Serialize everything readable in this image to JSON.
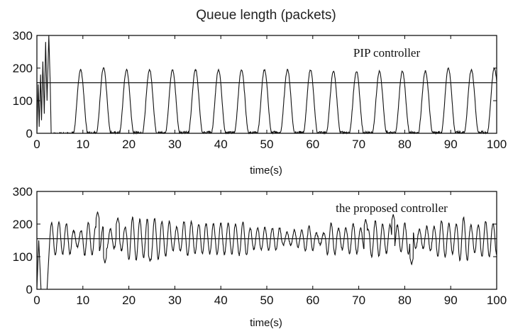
{
  "figure": {
    "title": "Queue length (packets)"
  },
  "chart_data": [
    {
      "type": "line",
      "annotation": "PIP controller",
      "xlabel": "time(s)",
      "ylabel": "",
      "xlim": [
        0,
        100
      ],
      "ylim": [
        0,
        300
      ],
      "xticks": [
        "0",
        "10",
        "20",
        "30",
        "40",
        "50",
        "60",
        "70",
        "80",
        "90",
        "100"
      ],
      "yticks": [
        "0",
        "100",
        "200",
        "300"
      ],
      "grid": false,
      "reference": {
        "y": 155
      },
      "series": [
        {
          "description": "queue length, PIP controller",
          "startup": [
            [
              0,
              0
            ],
            [
              0.3,
              150
            ],
            [
              0.5,
              20
            ],
            [
              0.8,
              180
            ],
            [
              1.0,
              40
            ],
            [
              1.3,
              220
            ],
            [
              1.6,
              60
            ],
            [
              1.9,
              280
            ],
            [
              2.2,
              100
            ],
            [
              2.6,
              300
            ],
            [
              2.9,
              150
            ],
            [
              3.1,
              0
            ]
          ],
          "peaks_t": [
            9.5,
            14.5,
            19.5,
            24.5,
            29.5,
            34.5,
            39.5,
            44.5,
            49.5,
            54.5,
            59.5,
            64.5,
            69.5,
            74.5,
            79.5,
            84.5,
            89.5,
            94.5,
            99.5
          ],
          "peak_values": [
            195,
            200,
            195,
            195,
            195,
            195,
            195,
            195,
            195,
            195,
            195,
            190,
            190,
            190,
            190,
            190,
            200,
            195,
            200
          ],
          "peak_width_s": 3.2,
          "baseline": 0,
          "first_rise_t": 7.5
        }
      ]
    },
    {
      "type": "line",
      "annotation": "the proposed controller",
      "xlabel": "time(s)",
      "ylabel": "",
      "xlim": [
        0,
        100
      ],
      "ylim": [
        0,
        300
      ],
      "xticks": [
        "0",
        "10",
        "20",
        "30",
        "40",
        "50",
        "60",
        "70",
        "80",
        "90",
        "100"
      ],
      "yticks": [
        "0",
        "100",
        "200",
        "300"
      ],
      "grid": false,
      "reference": {
        "y": 155
      },
      "series": [
        {
          "description": "queue length, proposed controller",
          "startup": [
            [
              0,
              0
            ],
            [
              0.4,
              150
            ],
            [
              0.9,
              0
            ],
            [
              2.2,
              0
            ],
            [
              2.8,
              150
            ]
          ],
          "center": 155,
          "period_s": 1.6,
          "amplitude_min": 25,
          "amplitude_max": 80,
          "notable_peaks": [
            [
              13.2,
              238
            ],
            [
              77.5,
              230
            ],
            [
              71.5,
              215
            ],
            [
              17.6,
              220
            ]
          ],
          "notable_troughs": [
            [
              81.5,
              75
            ],
            [
              24.6,
              85
            ],
            [
              14.8,
              80
            ]
          ],
          "approx_range": [
            70,
            240
          ]
        }
      ]
    }
  ]
}
